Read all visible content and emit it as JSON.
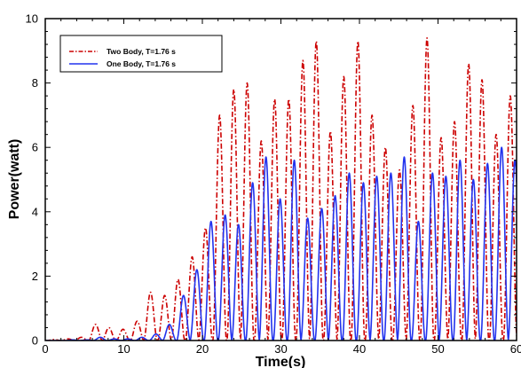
{
  "chart_data": {
    "type": "line",
    "title": "",
    "xlabel": "Time(s)",
    "ylabel": "Power(watt)",
    "xlim": [
      0,
      60
    ],
    "ylim": [
      0,
      10
    ],
    "x_ticks": [
      0,
      10,
      20,
      30,
      40,
      50,
      60
    ],
    "y_ticks": [
      0,
      2,
      4,
      6,
      8,
      10
    ],
    "grid": false,
    "legend_position": "top-left",
    "period": 1.76,
    "series": [
      {
        "name": "Two Body, T=1.76 s",
        "color": "#cc0000",
        "style": "dash-dot",
        "peaks": [
          [
            1.1,
            0.03
          ],
          [
            2.9,
            0.05
          ],
          [
            4.6,
            0.1
          ],
          [
            6.4,
            0.5
          ],
          [
            8.1,
            0.4
          ],
          [
            9.9,
            0.35
          ],
          [
            11.7,
            0.6
          ],
          [
            13.4,
            1.5
          ],
          [
            15.2,
            1.4
          ],
          [
            16.9,
            1.9
          ],
          [
            18.7,
            2.6
          ],
          [
            20.4,
            3.5
          ],
          [
            22.2,
            7.0
          ],
          [
            24.0,
            7.8
          ],
          [
            25.7,
            8.0
          ],
          [
            27.5,
            6.2
          ],
          [
            29.2,
            7.5
          ],
          [
            31.0,
            7.5
          ],
          [
            32.8,
            8.7
          ],
          [
            34.5,
            9.3
          ],
          [
            36.3,
            6.5
          ],
          [
            38.0,
            8.2
          ],
          [
            39.8,
            9.3
          ],
          [
            41.6,
            7.0
          ],
          [
            43.3,
            6.0
          ],
          [
            45.1,
            5.3
          ],
          [
            46.8,
            7.3
          ],
          [
            48.6,
            9.4
          ],
          [
            50.4,
            6.3
          ],
          [
            52.1,
            6.8
          ],
          [
            53.9,
            8.6
          ],
          [
            55.6,
            8.1
          ],
          [
            57.4,
            6.4
          ],
          [
            59.2,
            7.6
          ]
        ]
      },
      {
        "name": "One Body, T=1.76 s",
        "color": "#2233ee",
        "style": "solid",
        "peaks": [
          [
            3.5,
            0.02
          ],
          [
            5.3,
            0.02
          ],
          [
            7.0,
            0.1
          ],
          [
            8.8,
            0.05
          ],
          [
            10.5,
            0.05
          ],
          [
            12.3,
            0.1
          ],
          [
            14.1,
            0.2
          ],
          [
            15.8,
            0.5
          ],
          [
            17.6,
            1.4
          ],
          [
            19.3,
            2.2
          ],
          [
            21.1,
            3.7
          ],
          [
            22.9,
            3.9
          ],
          [
            24.6,
            3.6
          ],
          [
            26.4,
            4.9
          ],
          [
            28.1,
            5.7
          ],
          [
            29.9,
            4.4
          ],
          [
            31.7,
            5.6
          ],
          [
            33.4,
            3.8
          ],
          [
            35.2,
            4.1
          ],
          [
            36.9,
            4.5
          ],
          [
            38.7,
            5.2
          ],
          [
            40.5,
            4.9
          ],
          [
            42.2,
            5.1
          ],
          [
            44.0,
            5.2
          ],
          [
            45.7,
            5.7
          ],
          [
            47.5,
            3.7
          ],
          [
            49.3,
            5.2
          ],
          [
            51.0,
            5.1
          ],
          [
            52.8,
            5.6
          ],
          [
            54.5,
            5.0
          ],
          [
            56.3,
            5.5
          ],
          [
            58.1,
            6.0
          ],
          [
            59.8,
            5.6
          ]
        ]
      }
    ]
  }
}
